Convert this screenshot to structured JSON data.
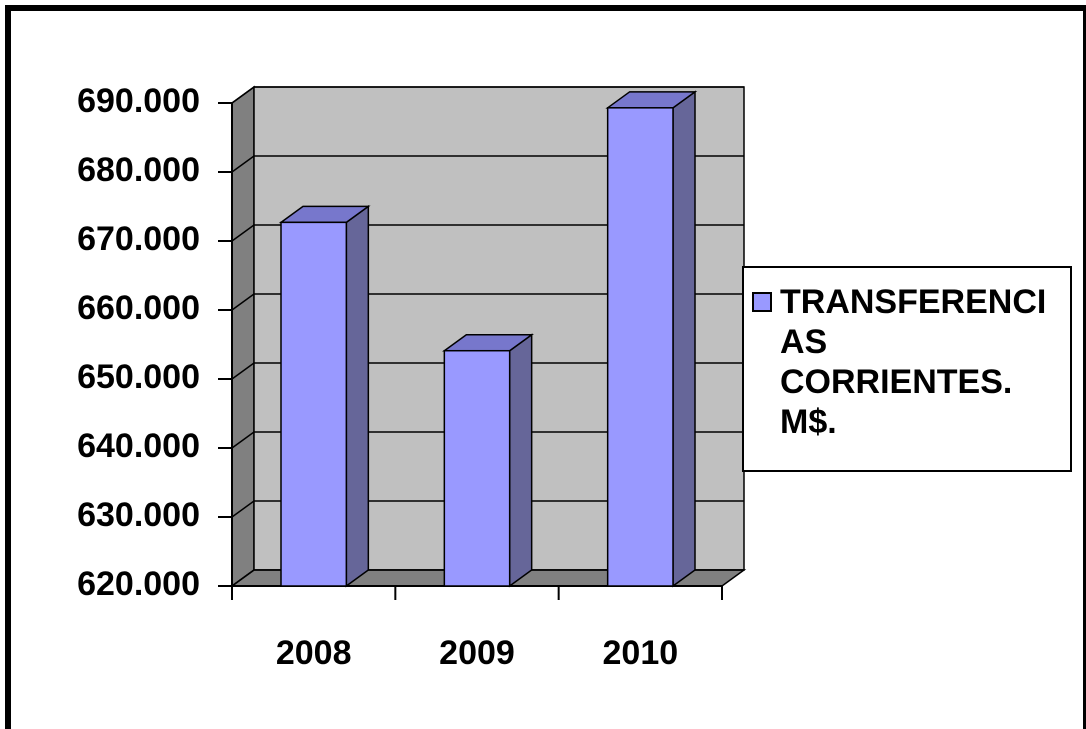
{
  "chart_data": {
    "type": "bar3d",
    "categories": [
      "2008",
      "2009",
      "2010"
    ],
    "series": [
      {
        "name": "TRANSFERENCIAS CORRIENTES. M$.",
        "color": "#9999ff",
        "values": [
          672700,
          654100,
          689300
        ]
      }
    ],
    "ylim": [
      620000,
      690000
    ],
    "yticks": [
      {
        "value": 620000,
        "label": "620.000"
      },
      {
        "value": 630000,
        "label": "630.000"
      },
      {
        "value": 640000,
        "label": "640.000"
      },
      {
        "value": 650000,
        "label": "650.000"
      },
      {
        "value": 660000,
        "label": "660.000"
      },
      {
        "value": 670000,
        "label": "670.000"
      },
      {
        "value": 680000,
        "label": "680.000"
      },
      {
        "value": 690000,
        "label": "690.000"
      }
    ],
    "grid": true,
    "legend": "right"
  }
}
